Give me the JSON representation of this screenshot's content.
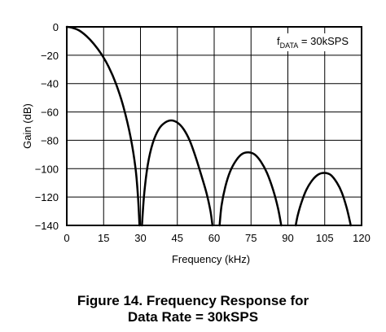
{
  "chart_data": {
    "type": "line",
    "xlabel": "Frequency (kHz)",
    "ylabel": "Gain (dB)",
    "xlim": [
      0,
      120
    ],
    "ylim": [
      -140,
      0
    ],
    "x_ticks": [
      0,
      15,
      30,
      45,
      60,
      75,
      90,
      105,
      120
    ],
    "y_ticks": [
      0,
      -20,
      -40,
      -60,
      -80,
      -100,
      -120,
      -140
    ],
    "grid": true,
    "annotation": {
      "prefix": "f",
      "subscript": "DATA",
      "suffix": " = 30kSPS",
      "placement": "top-right"
    },
    "series": [
      {
        "lobes": [
          {
            "x": [
              0,
              2,
              5,
              8,
              11,
              14,
              17,
              20,
              23,
              26,
              28,
              29,
              29.6
            ],
            "y": [
              0,
              -0.5,
              -2.5,
              -6.5,
              -12,
              -19,
              -28,
              -40,
              -56,
              -78,
              -100,
              -120,
              -140
            ]
          },
          {
            "x": [
              30.6,
              31.5,
              33,
              35,
              37.5,
              40,
              42.5,
              45,
              47.5,
              50,
              52.5,
              55,
              57,
              58.5,
              59.3
            ],
            "y": [
              -140,
              -118,
              -97,
              -82,
              -72,
              -67.5,
              -66,
              -67.5,
              -72,
              -80,
              -92,
              -106,
              -118,
              -130,
              -140
            ]
          },
          {
            "x": [
              62.2,
              63,
              64.5,
              66.5,
              69,
              71.5,
              74,
              76.5,
              79,
              81.5,
              84,
              86,
              87.3
            ],
            "y": [
              -140,
              -126,
              -113,
              -102,
              -94,
              -89.5,
              -88.5,
              -90,
              -95,
              -103,
              -115,
              -128,
              -140
            ]
          },
          {
            "x": [
              93.2,
              94,
              95.5,
              97.5,
              100,
              102.5,
              105,
              107.5,
              110,
              112,
              114,
              115.6
            ],
            "y": [
              -140,
              -133,
              -124,
              -115,
              -108,
              -104,
              -103,
              -104.5,
              -110,
              -117,
              -128,
              -140
            ]
          }
        ]
      }
    ]
  },
  "caption": {
    "line1": "Figure 14. Frequency Response for",
    "line2": "Data Rate = 30kSPS"
  }
}
